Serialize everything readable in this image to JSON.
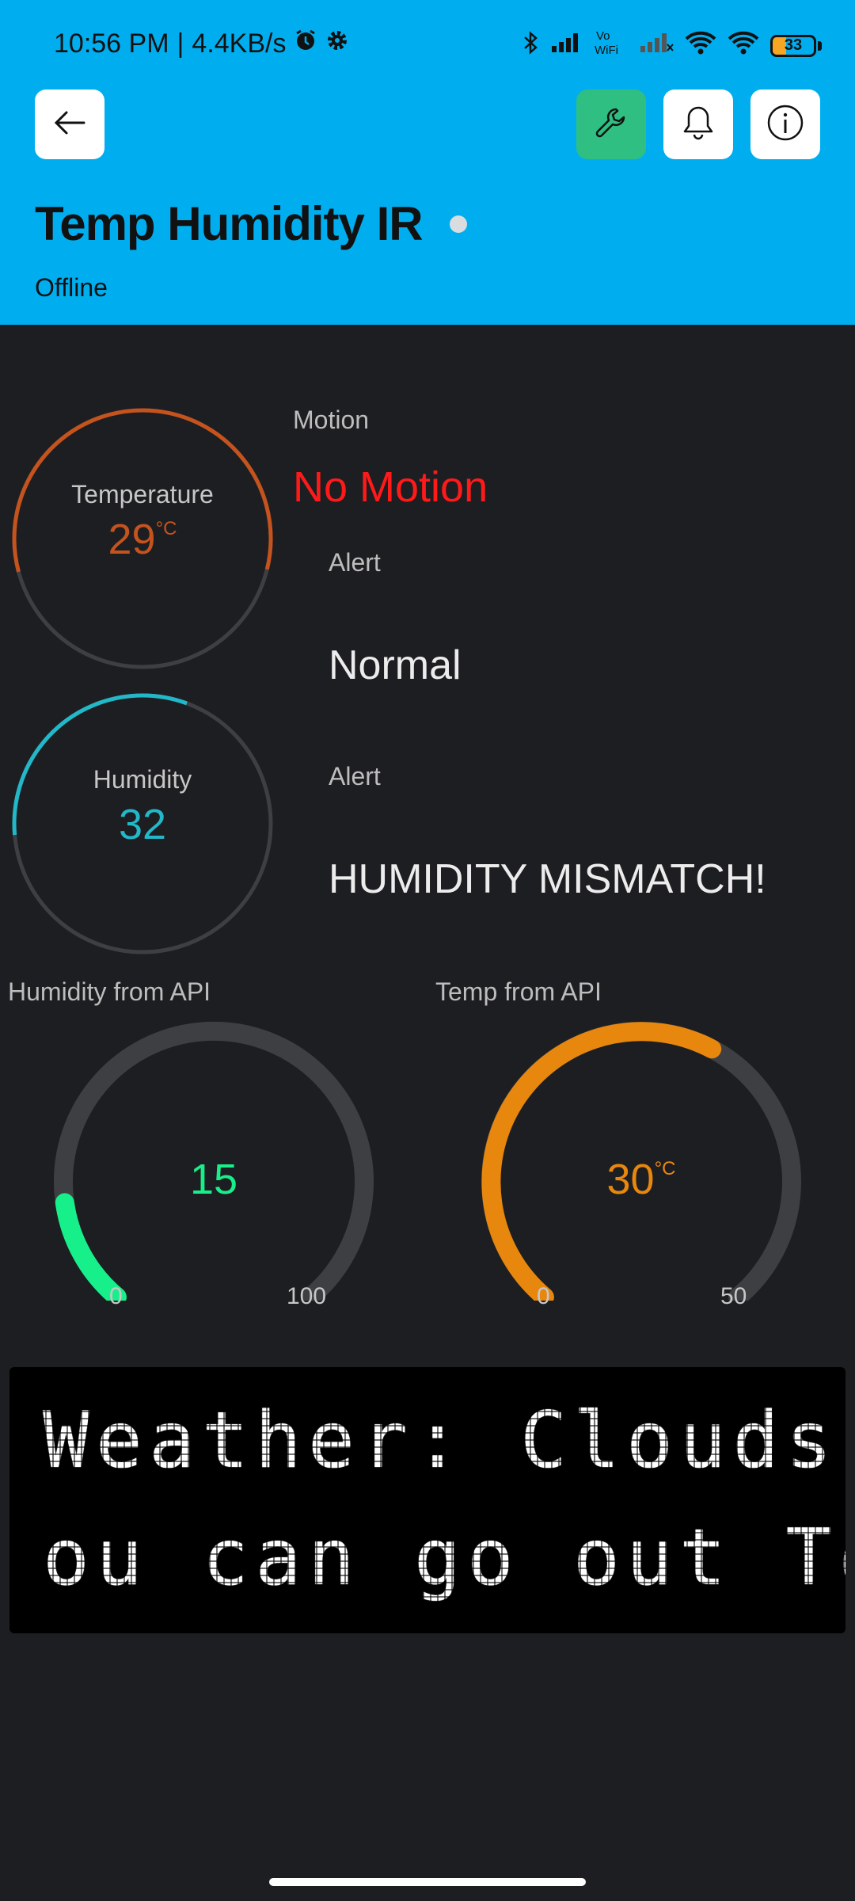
{
  "status_bar": {
    "time": "10:56 PM",
    "separator": "|",
    "speed": "4.4KB/s",
    "battery": "33",
    "icons": [
      "alarm-icon",
      "settings-icon",
      "bluetooth-icon",
      "signal-icon",
      "vowifi-icon",
      "signal-2-icon",
      "wifi-icon",
      "wifi-2-icon",
      "battery-icon"
    ]
  },
  "header": {
    "title": "Temp Humidity IR",
    "status": "Offline",
    "icons": [
      "back-arrow-icon",
      "wrench-icon",
      "bell-icon",
      "info-icon"
    ]
  },
  "temperature": {
    "label": "Temperature",
    "value": "29",
    "unit": "°C",
    "color": "#c4531e"
  },
  "humidity": {
    "label": "Humidity",
    "value": "32",
    "color": "#22b8c9"
  },
  "motion": {
    "label": "Motion",
    "value": "No Motion",
    "color": "#ff1a1a"
  },
  "alert_1": {
    "label": "Alert",
    "value": "Normal"
  },
  "alert_2": {
    "label": "Alert",
    "value": "HUMIDITY MISMATCH!"
  },
  "humidity_api": {
    "label": "Humidity from API",
    "value": "15",
    "min": "0",
    "max": "100",
    "color": "#17f08a"
  },
  "temp_api": {
    "label": "Temp from API",
    "value": "30",
    "unit": "°C",
    "min": "0",
    "max": "50",
    "color": "#e8870e"
  },
  "lcd": {
    "line1": "Weather: Clouds",
    "line2": "ou can go out To"
  }
}
